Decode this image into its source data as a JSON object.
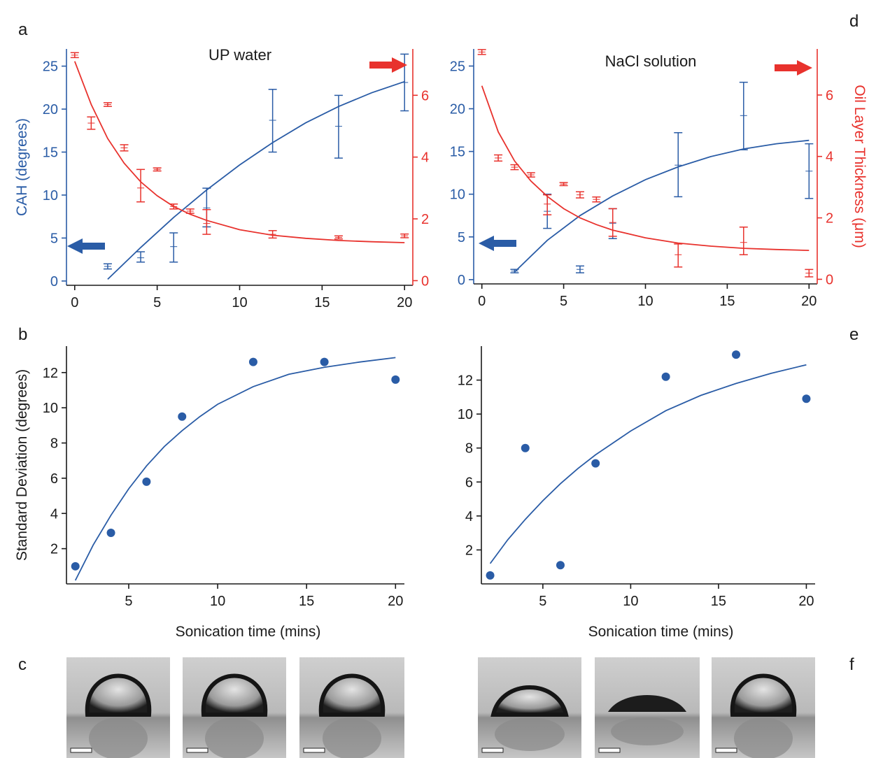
{
  "panel_labels": {
    "a": "a",
    "b": "b",
    "c": "c",
    "d": "d",
    "e": "e",
    "f": "f"
  },
  "colors": {
    "cah": "#2a5ca6",
    "oil": "#e8322d",
    "text": "#1a1a1a"
  },
  "chart_data": [
    {
      "panel": "a",
      "type": "line",
      "title": "UP water",
      "ylabel": "CAH (degrees)",
      "ylabel_right": "",
      "xlabel": "",
      "xlim": [
        -0.5,
        20.5
      ],
      "ylim": [
        -0.5,
        27
      ],
      "ylim_right": [
        -0.15,
        7.5
      ],
      "xticks": [
        0,
        5,
        10,
        15,
        20
      ],
      "yticks": [
        0,
        5,
        10,
        15,
        20,
        25
      ],
      "yticks_right": [
        0,
        2,
        4,
        6
      ],
      "series": [
        {
          "axis": "left",
          "kind": "errorbar",
          "color": "#2a5ca6",
          "points": [
            {
              "x": 2,
              "y": 1.7,
              "lo": 1.4,
              "hi": 2.0
            },
            {
              "x": 4,
              "y": 2.7,
              "lo": 2.2,
              "hi": 3.4
            },
            {
              "x": 6,
              "y": 4.0,
              "lo": 2.2,
              "hi": 5.6
            },
            {
              "x": 8,
              "y": 8.5,
              "lo": 6.3,
              "hi": 10.8
            },
            {
              "x": 12,
              "y": 18.7,
              "lo": 15.0,
              "hi": 22.3
            },
            {
              "x": 16,
              "y": 18.0,
              "lo": 14.3,
              "hi": 21.6
            },
            {
              "x": 20,
              "y": 23.1,
              "lo": 19.8,
              "hi": 26.4
            }
          ]
        },
        {
          "axis": "left",
          "kind": "fit",
          "color": "#2a5ca6",
          "x": [
            2,
            4,
            6,
            8,
            10,
            12,
            14,
            16,
            18,
            20
          ],
          "y": [
            0.2,
            3.9,
            7.4,
            10.6,
            13.5,
            16.1,
            18.4,
            20.3,
            21.9,
            23.2
          ]
        },
        {
          "axis": "right",
          "kind": "errorbar",
          "color": "#e8322d",
          "points": [
            {
              "x": 0,
              "y": 7.3,
              "lo": 7.22,
              "hi": 7.38
            },
            {
              "x": 1,
              "y": 5.1,
              "lo": 4.9,
              "hi": 5.3
            },
            {
              "x": 2,
              "y": 5.7,
              "lo": 5.64,
              "hi": 5.76
            },
            {
              "x": 3,
              "y": 4.3,
              "lo": 4.2,
              "hi": 4.4
            },
            {
              "x": 4,
              "y": 3.0,
              "lo": 2.55,
              "hi": 3.6
            },
            {
              "x": 5,
              "y": 3.6,
              "lo": 3.55,
              "hi": 3.65
            },
            {
              "x": 6,
              "y": 2.4,
              "lo": 2.32,
              "hi": 2.48
            },
            {
              "x": 7,
              "y": 2.25,
              "lo": 2.18,
              "hi": 2.32
            },
            {
              "x": 8,
              "y": 1.85,
              "lo": 1.5,
              "hi": 2.3
            },
            {
              "x": 12,
              "y": 1.5,
              "lo": 1.38,
              "hi": 1.62
            },
            {
              "x": 16,
              "y": 1.4,
              "lo": 1.35,
              "hi": 1.45
            },
            {
              "x": 20,
              "y": 1.45,
              "lo": 1.39,
              "hi": 1.51
            }
          ]
        },
        {
          "axis": "right",
          "kind": "fit",
          "color": "#e8322d",
          "x": [
            0,
            1,
            2,
            3,
            4,
            5,
            6,
            7,
            8,
            10,
            12,
            14,
            16,
            18,
            20
          ],
          "y": [
            7.1,
            5.7,
            4.6,
            3.8,
            3.2,
            2.75,
            2.4,
            2.15,
            1.95,
            1.65,
            1.47,
            1.37,
            1.3,
            1.26,
            1.23
          ]
        }
      ]
    },
    {
      "panel": "d",
      "type": "line",
      "title": "NaCl solution",
      "ylabel": "",
      "ylabel_right": "Oil Layer Thickness (μm)",
      "xlabel": "",
      "xlim": [
        -0.5,
        20.5
      ],
      "ylim": [
        -0.5,
        27
      ],
      "ylim_right": [
        -0.15,
        7.5
      ],
      "xticks": [
        0,
        5,
        10,
        15,
        20
      ],
      "yticks": [
        0,
        5,
        10,
        15,
        20,
        25
      ],
      "yticks_right": [
        0,
        2,
        4,
        6
      ],
      "series": [
        {
          "axis": "left",
          "kind": "errorbar",
          "color": "#2a5ca6",
          "points": [
            {
              "x": 2,
              "y": 1.0,
              "lo": 0.8,
              "hi": 1.2
            },
            {
              "x": 4,
              "y": 8.0,
              "lo": 6.0,
              "hi": 10.0
            },
            {
              "x": 6,
              "y": 1.2,
              "lo": 0.8,
              "hi": 1.6
            },
            {
              "x": 8,
              "y": 6.6,
              "lo": 4.8,
              "hi": 8.3
            },
            {
              "x": 12,
              "y": 13.4,
              "lo": 9.7,
              "hi": 17.2
            },
            {
              "x": 16,
              "y": 19.2,
              "lo": 15.2,
              "hi": 23.1
            },
            {
              "x": 20,
              "y": 12.7,
              "lo": 9.5,
              "hi": 15.9
            }
          ]
        },
        {
          "axis": "left",
          "kind": "fit",
          "color": "#2a5ca6",
          "x": [
            2,
            4,
            6,
            8,
            10,
            12,
            14,
            16,
            18,
            20
          ],
          "y": [
            0.9,
            4.6,
            7.5,
            9.8,
            11.7,
            13.2,
            14.4,
            15.3,
            15.9,
            16.3
          ]
        },
        {
          "axis": "right",
          "kind": "errorbar",
          "color": "#e8322d",
          "points": [
            {
              "x": 0,
              "y": 7.4,
              "lo": 7.32,
              "hi": 7.48
            },
            {
              "x": 1,
              "y": 3.95,
              "lo": 3.85,
              "hi": 4.05
            },
            {
              "x": 2,
              "y": 3.65,
              "lo": 3.57,
              "hi": 3.73
            },
            {
              "x": 3,
              "y": 3.4,
              "lo": 3.33,
              "hi": 3.47
            },
            {
              "x": 4,
              "y": 2.45,
              "lo": 2.1,
              "hi": 2.75
            },
            {
              "x": 5,
              "y": 3.1,
              "lo": 3.05,
              "hi": 3.15
            },
            {
              "x": 6,
              "y": 2.75,
              "lo": 2.65,
              "hi": 2.85
            },
            {
              "x": 7,
              "y": 2.6,
              "lo": 2.52,
              "hi": 2.68
            },
            {
              "x": 8,
              "y": 1.85,
              "lo": 1.4,
              "hi": 2.3
            },
            {
              "x": 12,
              "y": 0.8,
              "lo": 0.4,
              "hi": 1.15
            },
            {
              "x": 16,
              "y": 1.2,
              "lo": 0.8,
              "hi": 1.7
            },
            {
              "x": 20,
              "y": 0.2,
              "lo": 0.08,
              "hi": 0.32
            }
          ]
        },
        {
          "axis": "right",
          "kind": "fit",
          "color": "#e8322d",
          "x": [
            0,
            1,
            2,
            3,
            4,
            5,
            6,
            7,
            8,
            10,
            12,
            14,
            16,
            18,
            20
          ],
          "y": [
            6.3,
            4.8,
            3.85,
            3.2,
            2.7,
            2.3,
            2.0,
            1.78,
            1.6,
            1.35,
            1.18,
            1.08,
            1.01,
            0.97,
            0.94
          ]
        }
      ]
    },
    {
      "panel": "b",
      "type": "scatter",
      "title": "",
      "ylabel": "Standard Deviation (degrees)",
      "xlabel": "Sonication time (mins)",
      "xlim": [
        1.5,
        20.5
      ],
      "ylim": [
        0,
        13.5
      ],
      "xticks": [
        5,
        10,
        15,
        20
      ],
      "yticks": [
        2,
        4,
        6,
        8,
        10,
        12
      ],
      "series": [
        {
          "kind": "points",
          "color": "#2a5ca6",
          "x": [
            2,
            4,
            6,
            8,
            12,
            16,
            20
          ],
          "y": [
            1.0,
            2.9,
            5.8,
            9.5,
            12.6,
            12.6,
            11.6
          ]
        },
        {
          "kind": "fit",
          "color": "#2a5ca6",
          "x": [
            2,
            3,
            4,
            5,
            6,
            7,
            8,
            9,
            10,
            12,
            14,
            16,
            18,
            20
          ],
          "y": [
            0.2,
            2.2,
            3.9,
            5.4,
            6.7,
            7.8,
            8.7,
            9.5,
            10.2,
            11.2,
            11.9,
            12.3,
            12.6,
            12.85
          ]
        }
      ]
    },
    {
      "panel": "e",
      "type": "scatter",
      "title": "",
      "ylabel": "",
      "xlabel": "Sonication time (mins)",
      "xlim": [
        1.5,
        20.5
      ],
      "ylim": [
        0,
        14
      ],
      "xticks": [
        5,
        10,
        15,
        20
      ],
      "yticks": [
        2,
        4,
        6,
        8,
        10,
        12
      ],
      "series": [
        {
          "kind": "points",
          "color": "#2a5ca6",
          "x": [
            2,
            4,
            6,
            8,
            12,
            16,
            20
          ],
          "y": [
            0.5,
            8.0,
            1.1,
            7.1,
            12.2,
            13.5,
            10.9
          ]
        },
        {
          "kind": "fit",
          "color": "#2a5ca6",
          "x": [
            2,
            3,
            4,
            5,
            6,
            7,
            8,
            9,
            10,
            12,
            14,
            16,
            18,
            20
          ],
          "y": [
            1.2,
            2.6,
            3.8,
            4.9,
            5.9,
            6.8,
            7.6,
            8.3,
            9.0,
            10.2,
            11.1,
            11.8,
            12.4,
            12.9
          ]
        }
      ]
    }
  ]
}
